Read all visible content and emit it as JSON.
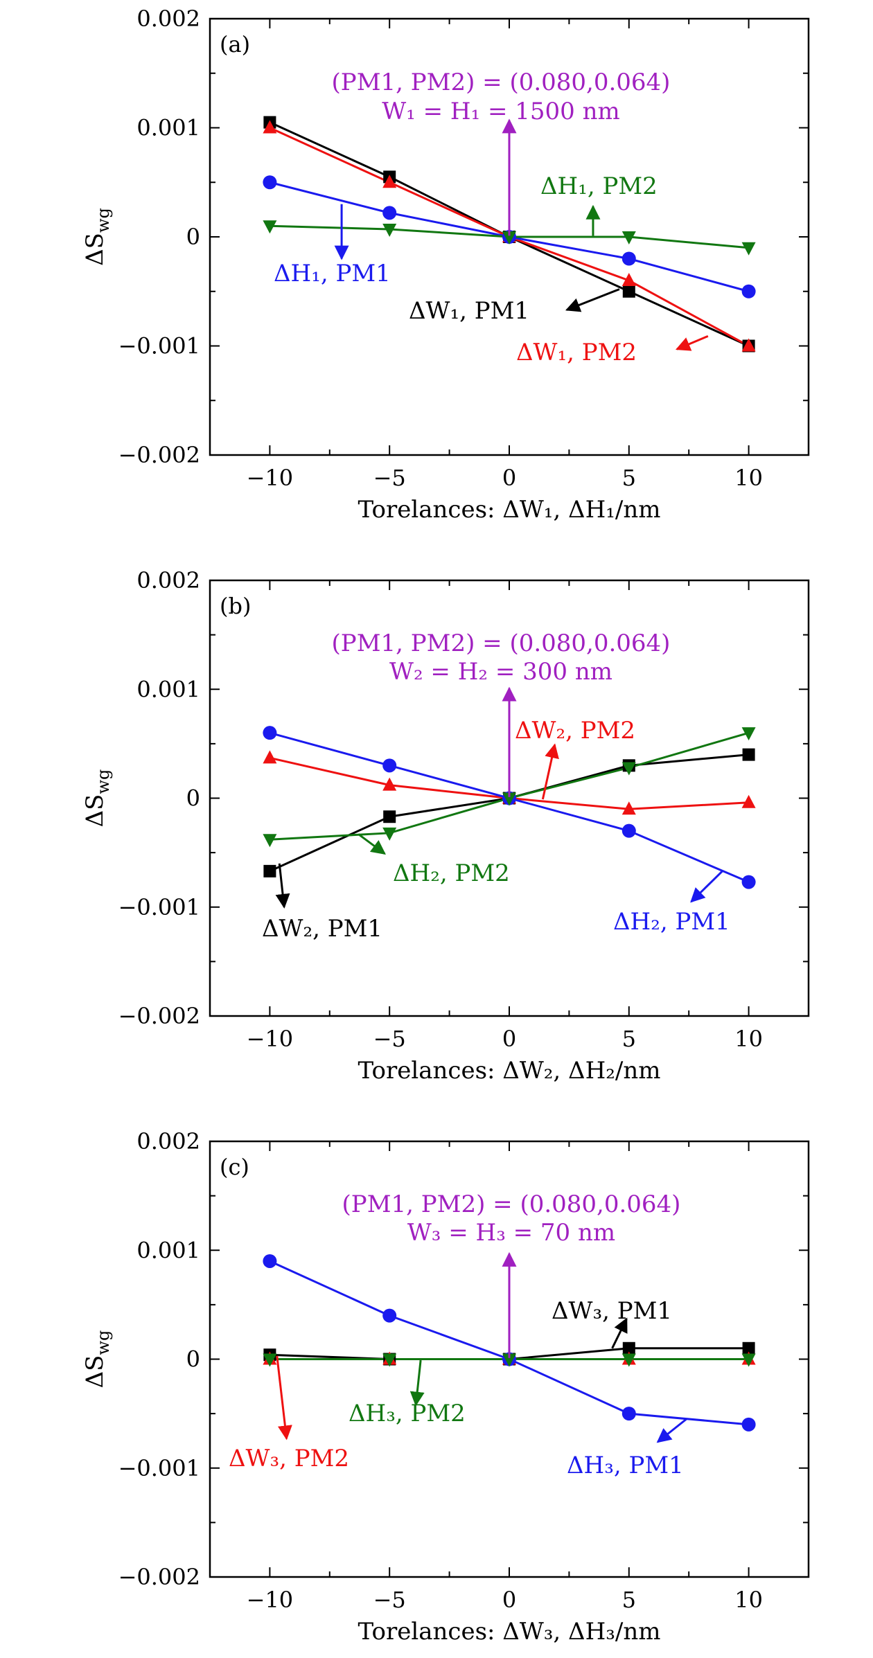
{
  "chart_data": [
    {
      "type": "line",
      "panel_label": "(a)",
      "xlabel": "Torelances: ΔW₁, ΔH₁/nm",
      "ylabel": "ΔS",
      "ylabel_sub": "wg",
      "xlim": [
        -12.5,
        12.5
      ],
      "ylim": [
        -0.002,
        0.002
      ],
      "xticks": [
        -10,
        -5,
        0,
        5,
        10
      ],
      "xtick_labels": [
        "−10",
        "−5",
        "0",
        "5",
        "10"
      ],
      "yticks": [
        -0.002,
        -0.001,
        0,
        0.001,
        0.002
      ],
      "ytick_labels": [
        "−0.002",
        "−0.001",
        "0",
        "0.001",
        "0.002"
      ],
      "x": [
        -10,
        -5,
        0,
        5,
        10
      ],
      "series": [
        {
          "name": "ΔW₁, PM1",
          "color": "#000000",
          "marker": "square",
          "values": [
            0.00105,
            0.00055,
            0,
            -0.0005,
            -0.001
          ]
        },
        {
          "name": "ΔW₁, PM2",
          "color": "#ee1111",
          "marker": "triangle-up",
          "values": [
            0.001,
            0.0005,
            0,
            -0.0004,
            -0.001
          ]
        },
        {
          "name": "ΔH₁, PM1",
          "color": "#1a1aee",
          "marker": "circle",
          "values": [
            0.0005,
            0.00022,
            0,
            -0.0002,
            -0.0005
          ]
        },
        {
          "name": "ΔH₁, PM2",
          "color": "#117711",
          "marker": "triangle-down",
          "values": [
            0.0001,
            7e-05,
            0,
            0,
            -0.0001
          ]
        }
      ],
      "header_lines": [
        {
          "text": "(PM1, PM2) = (0.080,0.064)",
          "color": "#a020c0"
        },
        {
          "text": "W₁ = H₁ = 1500 nm",
          "color": "#a020c0"
        }
      ],
      "annotations": [
        {
          "text": "ΔH₁, PM2",
          "color": "#117711"
        },
        {
          "text": "ΔH₁, PM1",
          "color": "#1a1aee"
        },
        {
          "text": "ΔW₁, PM1",
          "color": "#000000"
        },
        {
          "text": "ΔW₁, PM2",
          "color": "#ee1111"
        }
      ]
    },
    {
      "type": "line",
      "panel_label": "(b)",
      "xlabel": "Torelances: ΔW₂, ΔH₂/nm",
      "ylabel": "ΔS",
      "ylabel_sub": "wg",
      "xlim": [
        -12.5,
        12.5
      ],
      "ylim": [
        -0.002,
        0.002
      ],
      "xticks": [
        -10,
        -5,
        0,
        5,
        10
      ],
      "xtick_labels": [
        "−10",
        "−5",
        "0",
        "5",
        "10"
      ],
      "yticks": [
        -0.002,
        -0.001,
        0,
        0.001,
        0.002
      ],
      "ytick_labels": [
        "−0.002",
        "−0.001",
        "0",
        "0.001",
        "0.002"
      ],
      "x": [
        -10,
        -5,
        0,
        5,
        10
      ],
      "series": [
        {
          "name": "ΔW₂, PM1",
          "color": "#000000",
          "marker": "square",
          "values": [
            -0.00067,
            -0.00017,
            0,
            0.0003,
            0.0004
          ]
        },
        {
          "name": "ΔW₂, PM2",
          "color": "#ee1111",
          "marker": "triangle-up",
          "values": [
            0.00037,
            0.00012,
            0,
            -0.0001,
            -4e-05
          ]
        },
        {
          "name": "ΔH₂, PM1",
          "color": "#1a1aee",
          "marker": "circle",
          "values": [
            0.0006,
            0.0003,
            0,
            -0.0003,
            -0.00077
          ]
        },
        {
          "name": "ΔH₂, PM2",
          "color": "#117711",
          "marker": "triangle-down",
          "values": [
            -0.00038,
            -0.00032,
            0,
            0.00028,
            0.0006
          ]
        }
      ],
      "header_lines": [
        {
          "text": "(PM1, PM2) = (0.080,0.064)",
          "color": "#a020c0"
        },
        {
          "text": "W₂ = H₂ = 300 nm",
          "color": "#a020c0"
        }
      ],
      "annotations": [
        {
          "text": "ΔW₂, PM2",
          "color": "#ee1111"
        },
        {
          "text": "ΔH₂, PM2",
          "color": "#117711"
        },
        {
          "text": "ΔW₂, PM1",
          "color": "#000000"
        },
        {
          "text": "ΔH₂, PM1",
          "color": "#1a1aee"
        }
      ]
    },
    {
      "type": "line",
      "panel_label": "(c)",
      "xlabel": "Torelances: ΔW₃, ΔH₃/nm",
      "ylabel": "ΔS",
      "ylabel_sub": "wg",
      "xlim": [
        -12.5,
        12.5
      ],
      "ylim": [
        -0.002,
        0.002
      ],
      "xticks": [
        -10,
        -5,
        0,
        5,
        10
      ],
      "xtick_labels": [
        "−10",
        "−5",
        "0",
        "5",
        "10"
      ],
      "yticks": [
        -0.002,
        -0.001,
        0,
        0.001,
        0.002
      ],
      "ytick_labels": [
        "−0.002",
        "−0.001",
        "0",
        "0.001",
        "0.002"
      ],
      "x": [
        -10,
        -5,
        0,
        5,
        10
      ],
      "series": [
        {
          "name": "ΔW₃, PM1",
          "color": "#000000",
          "marker": "square",
          "values": [
            4e-05,
            0,
            0,
            0.0001,
            0.0001
          ]
        },
        {
          "name": "ΔW₃, PM2",
          "color": "#ee1111",
          "marker": "triangle-up",
          "values": [
            0,
            0,
            0,
            0,
            0
          ]
        },
        {
          "name": "ΔH₃, PM1",
          "color": "#1a1aee",
          "marker": "circle",
          "values": [
            0.0009,
            0.0004,
            0,
            -0.0005,
            -0.0006
          ]
        },
        {
          "name": "ΔH₃, PM2",
          "color": "#117711",
          "marker": "triangle-down",
          "values": [
            0,
            0,
            0,
            0,
            0
          ]
        }
      ],
      "header_lines": [
        {
          "text": "(PM1, PM2) = (0.080,0.064)",
          "color": "#a020c0"
        },
        {
          "text": "W₃ = H₃ = 70 nm",
          "color": "#a020c0"
        }
      ],
      "annotations": [
        {
          "text": "ΔW₃, PM1",
          "color": "#000000"
        },
        {
          "text": "ΔH₃, PM2",
          "color": "#117711"
        },
        {
          "text": "ΔW₃, PM2",
          "color": "#ee1111"
        },
        {
          "text": "ΔH₃, PM1",
          "color": "#1a1aee"
        }
      ]
    }
  ]
}
